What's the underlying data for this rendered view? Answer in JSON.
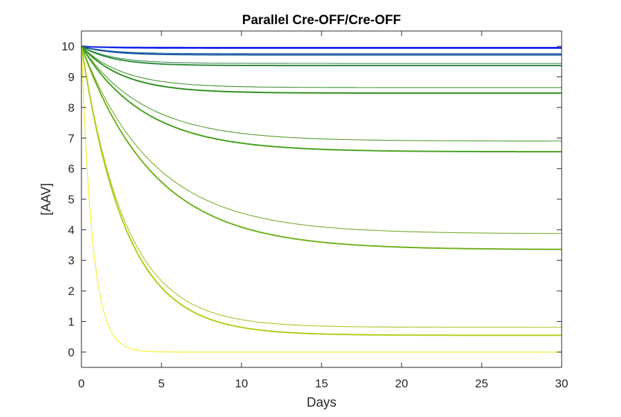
{
  "chart_data": {
    "type": "line",
    "title": "Parallel Cre-OFF/Cre-OFF",
    "xlabel": "Days",
    "ylabel": "[AAV]",
    "xlim": [
      0,
      30
    ],
    "ylim": [
      -0.5,
      10.5
    ],
    "xticks": [
      0,
      5,
      10,
      15,
      20,
      25,
      30
    ],
    "yticks": [
      0,
      1,
      2,
      3,
      4,
      5,
      6,
      7,
      8,
      9,
      10
    ],
    "grid": false,
    "legend": "none",
    "x_day_step": 0.25,
    "series": [
      {
        "color": "#1a1aff",
        "y0": 10,
        "yinf": 9.97,
        "k": 0.6,
        "thick": false
      },
      {
        "color": "#1426e6",
        "y0": 10,
        "yinf": 9.94,
        "k": 0.6,
        "thick": true
      },
      {
        "color": "#1a5fb0",
        "y0": 10,
        "yinf": 9.76,
        "k": 0.55,
        "thick": false
      },
      {
        "color": "#16549a",
        "y0": 10,
        "yinf": 9.72,
        "k": 0.55,
        "thick": true
      },
      {
        "color": "#3c8a5a",
        "y0": 10,
        "yinf": 9.44,
        "k": 0.5,
        "thick": false
      },
      {
        "color": "#2c8a3a",
        "y0": 10,
        "yinf": 9.37,
        "k": 0.5,
        "thick": true
      },
      {
        "color": "#3d8f2a",
        "y0": 10,
        "yinf": 8.65,
        "k": 0.38,
        "thick": false
      },
      {
        "color": "#2a8f1a",
        "y0": 10,
        "yinf": 8.47,
        "k": 0.38,
        "thick": true
      },
      {
        "color": "#4f9a28",
        "y0": 10,
        "yinf": 6.9,
        "k": 0.25,
        "thick": false
      },
      {
        "color": "#42a01a",
        "y0": 10,
        "yinf": 6.55,
        "k": 0.25,
        "thick": true
      },
      {
        "color": "#72a828",
        "y0": 10,
        "yinf": 3.87,
        "k": 0.22,
        "thick": false
      },
      {
        "color": "#6cb01a",
        "y0": 10,
        "yinf": 3.35,
        "k": 0.22,
        "thick": true
      },
      {
        "color": "#a8c21e",
        "y0": 10,
        "yinf": 0.81,
        "k": 0.36,
        "thick": false
      },
      {
        "color": "#b2cc12",
        "y0": 10,
        "yinf": 0.55,
        "k": 0.36,
        "thick": true
      },
      {
        "color": "#f2ee1c",
        "y0": 10,
        "yinf": 0.0,
        "k": 1.45,
        "thick": false
      }
    ]
  }
}
